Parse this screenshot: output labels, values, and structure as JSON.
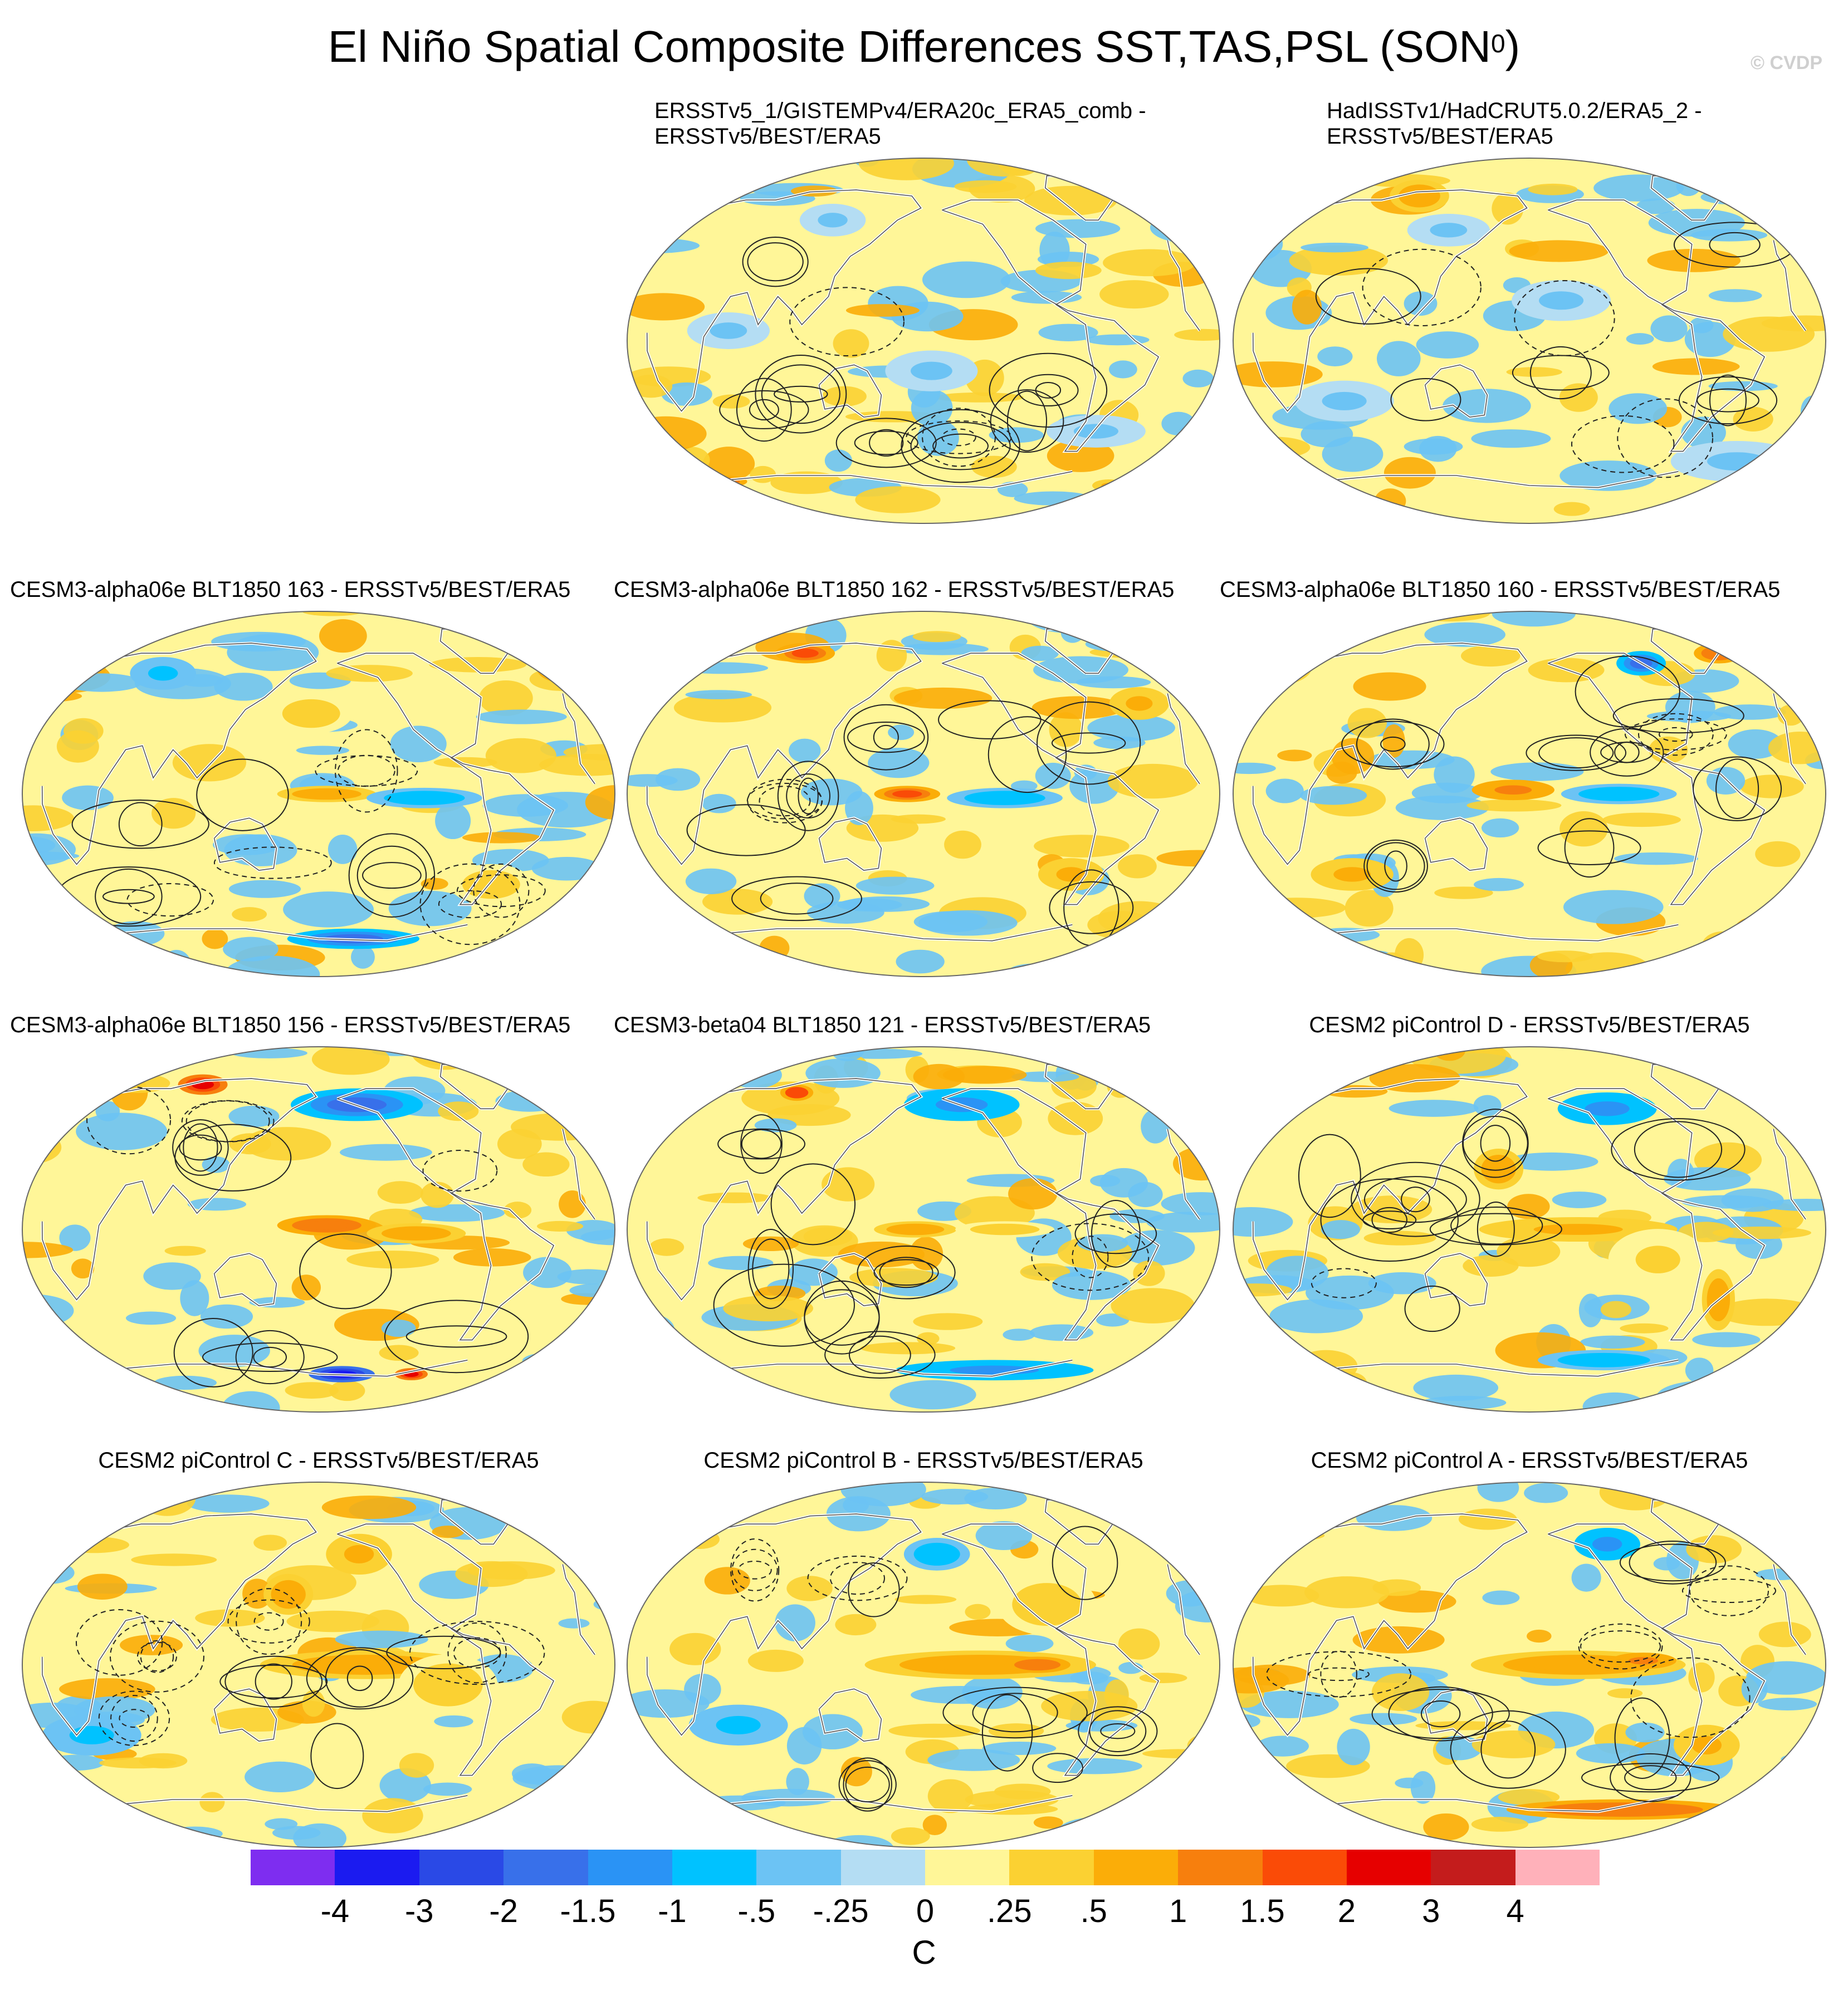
{
  "figure": {
    "title": "El Niño Spatial Composite Differences SST,TAS,PSL (SON",
    "title_sup": "0",
    "title_end": ")",
    "watermark": "© CVDP"
  },
  "panels": [
    {
      "id": "p1",
      "title_lines": [
        "ERSSTv5_1/GISTEMPv4/ERA20c_ERA5_comb -",
        "ERSSTv5/BEST/ERA5"
      ],
      "blobs": [
        {
          "lon": -175,
          "lat": -15,
          "rx": 28,
          "ry": 10,
          "v": -0.3
        },
        {
          "lon": 60,
          "lat": 5,
          "rx": 25,
          "ry": 9,
          "v": -0.3
        },
        {
          "lon": 110,
          "lat": 60,
          "rx": 20,
          "ry": 8,
          "v": -0.3
        },
        {
          "lon": -60,
          "lat": -45,
          "rx": 30,
          "ry": 8,
          "v": -0.3
        },
        {
          "lon": 10,
          "lat": -70,
          "rx": 15,
          "ry": 3,
          "v": 1.7
        },
        {
          "lon": -20,
          "lat": -72,
          "rx": 10,
          "ry": 3,
          "v": 0.6
        }
      ]
    },
    {
      "id": "p2",
      "title_lines": [
        "HadISSTv1/HadCRUT5.0.2/ERA5_2 -",
        "ERSSTv5/BEST/ERA5"
      ],
      "blobs": [
        {
          "lon": 85,
          "lat": 72,
          "rx": 18,
          "ry": 8,
          "v": 0.7
        },
        {
          "lon": -160,
          "lat": 20,
          "rx": 30,
          "ry": 10,
          "v": -0.3
        },
        {
          "lon": 60,
          "lat": -30,
          "rx": 30,
          "ry": 10,
          "v": -0.3
        },
        {
          "lon": -20,
          "lat": -60,
          "rx": 40,
          "ry": 10,
          "v": -0.3
        },
        {
          "lon": 120,
          "lat": 55,
          "rx": 25,
          "ry": 8,
          "v": -0.3
        }
      ]
    },
    {
      "id": "p3",
      "title_lines": [
        "CESM3-alpha06e BLT1850 163 - ERSSTv5/BEST/ERA5"
      ],
      "blobs": [
        {
          "lon": -175,
          "lat": 0,
          "rx": 30,
          "ry": 4,
          "v": 0.7
        },
        {
          "lon": -115,
          "lat": -2,
          "rx": 35,
          "ry": 5,
          "v": -0.7
        },
        {
          "lon": 175,
          "lat": 40,
          "rx": 25,
          "ry": 10,
          "v": 0.4
        },
        {
          "lon": -60,
          "lat": -45,
          "rx": 25,
          "ry": 10,
          "v": 0.5
        },
        {
          "lon": 60,
          "lat": 60,
          "rx": 20,
          "ry": 8,
          "v": -0.6
        },
        {
          "lon": -150,
          "lat": -72,
          "rx": 40,
          "ry": 5,
          "v": -1.5
        }
      ]
    },
    {
      "id": "p4",
      "title_lines": [
        "CESM3-alpha06e BLT1850 162 - ERSSTv5/BEST/ERA5"
      ],
      "blobs": [
        {
          "lon": 170,
          "lat": 0,
          "rx": 20,
          "ry": 4,
          "v": 1.7
        },
        {
          "lon": -130,
          "lat": -2,
          "rx": 35,
          "ry": 5,
          "v": -0.7
        },
        {
          "lon": 80,
          "lat": 70,
          "rx": 18,
          "ry": 5,
          "v": 1.8
        },
        {
          "lon": -80,
          "lat": -40,
          "rx": 20,
          "ry": 8,
          "v": 0.6
        },
        {
          "lon": -30,
          "lat": 45,
          "rx": 18,
          "ry": 8,
          "v": 0.6
        }
      ]
    },
    {
      "id": "p5",
      "title_lines": [
        "CESM3-alpha06e BLT1850 160 - ERSSTv5/BEST/ERA5"
      ],
      "blobs": [
        {
          "lon": 170,
          "lat": 2,
          "rx": 25,
          "ry": 5,
          "v": 1.2
        },
        {
          "lon": -125,
          "lat": 0,
          "rx": 35,
          "ry": 5,
          "v": -0.8
        },
        {
          "lon": -20,
          "lat": 70,
          "rx": 15,
          "ry": 5,
          "v": 1.3
        },
        {
          "lon": -90,
          "lat": 65,
          "rx": 15,
          "ry": 6,
          "v": -1.6
        },
        {
          "lon": 60,
          "lat": -40,
          "rx": 25,
          "ry": 8,
          "v": 0.6
        }
      ]
    },
    {
      "id": "p6",
      "title_lines": [
        "CESM3-alpha06e BLT1850 156 - ERSSTv5/BEST/ERA5"
      ],
      "blobs": [
        {
          "lon": -175,
          "lat": 2,
          "rx": 30,
          "ry": 5,
          "v": 1.4
        },
        {
          "lon": -120,
          "lat": -2,
          "rx": 30,
          "ry": 5,
          "v": 0.8
        },
        {
          "lon": -150,
          "lat": 62,
          "rx": 40,
          "ry": 8,
          "v": -1.8
        },
        {
          "lon": -160,
          "lat": -72,
          "rx": 20,
          "ry": 4,
          "v": -3.5
        },
        {
          "lon": -100,
          "lat": -72,
          "rx": 10,
          "ry": 3,
          "v": 2.2
        },
        {
          "lon": 80,
          "lat": 72,
          "rx": 15,
          "ry": 5,
          "v": 2.2
        }
      ]
    },
    {
      "id": "p7",
      "title_lines": [
        "CESM3-beta04 BLT1850 121 - ERSSTv5/BEST/ERA5"
      ],
      "blobs": [
        {
          "lon": 175,
          "lat": 0,
          "rx": 25,
          "ry": 4,
          "v": 0.8
        },
        {
          "lon": -130,
          "lat": 0,
          "rx": 30,
          "ry": 4,
          "v": 0.5
        },
        {
          "lon": -150,
          "lat": 62,
          "rx": 35,
          "ry": 8,
          "v": -1.2
        },
        {
          "lon": -120,
          "lat": -70,
          "rx": 60,
          "ry": 5,
          "v": -1.2
        },
        {
          "lon": 75,
          "lat": 68,
          "rx": 10,
          "ry": 4,
          "v": 2.0
        }
      ]
    },
    {
      "id": "p8",
      "title_lines": [
        "CESM2 piControl D - ERSSTv5/BEST/ERA5"
      ],
      "blobs": [
        {
          "lon": -150,
          "lat": 0,
          "rx": 60,
          "ry": 6,
          "v": 0.6
        },
        {
          "lon": -100,
          "lat": -15,
          "rx": 30,
          "ry": 15,
          "v": 0.3
        },
        {
          "lon": -120,
          "lat": 60,
          "rx": 30,
          "ry": 8,
          "v": -1.0
        },
        {
          "lon": -55,
          "lat": -35,
          "rx": 10,
          "ry": 15,
          "v": 1.0
        },
        {
          "lon": 160,
          "lat": 30,
          "rx": 15,
          "ry": 10,
          "v": 1.0
        },
        {
          "lon": -120,
          "lat": -65,
          "rx": 40,
          "ry": 5,
          "v": -0.8
        }
      ]
    },
    {
      "id": "p9",
      "title_lines": [
        "CESM2 piControl C - ERSSTv5/BEST/ERA5"
      ],
      "blobs": [
        {
          "lon": -150,
          "lat": 0,
          "rx": 65,
          "ry": 7,
          "v": 0.7
        },
        {
          "lon": -100,
          "lat": -10,
          "rx": 30,
          "ry": 15,
          "v": 0.5
        },
        {
          "lon": -150,
          "lat": 55,
          "rx": 20,
          "ry": 10,
          "v": 0.6
        },
        {
          "lon": 30,
          "lat": -35,
          "rx": 30,
          "ry": 10,
          "v": -0.6
        },
        {
          "lon": 160,
          "lat": 35,
          "rx": 15,
          "ry": 10,
          "v": 0.8
        }
      ]
    },
    {
      "id": "p10",
      "title_lines": [
        "CESM2 piControl B - ERSSTv5/BEST/ERA5"
      ],
      "blobs": [
        {
          "lon": -145,
          "lat": 0,
          "rx": 70,
          "ry": 7,
          "v": 0.9
        },
        {
          "lon": -110,
          "lat": 0,
          "rx": 20,
          "ry": 4,
          "v": 1.3
        },
        {
          "lon": -100,
          "lat": 30,
          "rx": 30,
          "ry": 15,
          "v": 0.5
        },
        {
          "lon": -170,
          "lat": 55,
          "rx": 20,
          "ry": 8,
          "v": -0.8
        },
        {
          "lon": 60,
          "lat": -30,
          "rx": 30,
          "ry": 10,
          "v": -0.5
        }
      ]
    },
    {
      "id": "p11",
      "title_lines": [
        "CESM2 piControl A - ERSSTv5/BEST/ERA5"
      ],
      "blobs": [
        {
          "lon": -150,
          "lat": 0,
          "rx": 65,
          "ry": 7,
          "v": 0.9
        },
        {
          "lon": -110,
          "lat": 2,
          "rx": 20,
          "ry": 4,
          "v": 1.2
        },
        {
          "lon": -120,
          "lat": 60,
          "rx": 20,
          "ry": 8,
          "v": -1.2
        },
        {
          "lon": -100,
          "lat": -72,
          "rx": 70,
          "ry": 5,
          "v": 1.3
        },
        {
          "lon": -60,
          "lat": -40,
          "rx": 20,
          "ry": 10,
          "v": 0.6
        }
      ]
    }
  ],
  "colorbar": {
    "colors": [
      "#7e2df0",
      "#1b1bf0",
      "#2a49e6",
      "#3870ea",
      "#2a93f5",
      "#00c2ff",
      "#6cc3f4",
      "#b4ddf3",
      "#fff698",
      "#fbd132",
      "#fbad08",
      "#f77f0d",
      "#fa4b07",
      "#e60000",
      "#c41c1c",
      "#ffb1ba"
    ],
    "labels": [
      "-4",
      "-3",
      "-2",
      "-1.5",
      "-1",
      "-.5",
      "-.25",
      "0",
      ".25",
      ".5",
      "1",
      "1.5",
      "2",
      "3",
      "4"
    ],
    "units": "C"
  }
}
